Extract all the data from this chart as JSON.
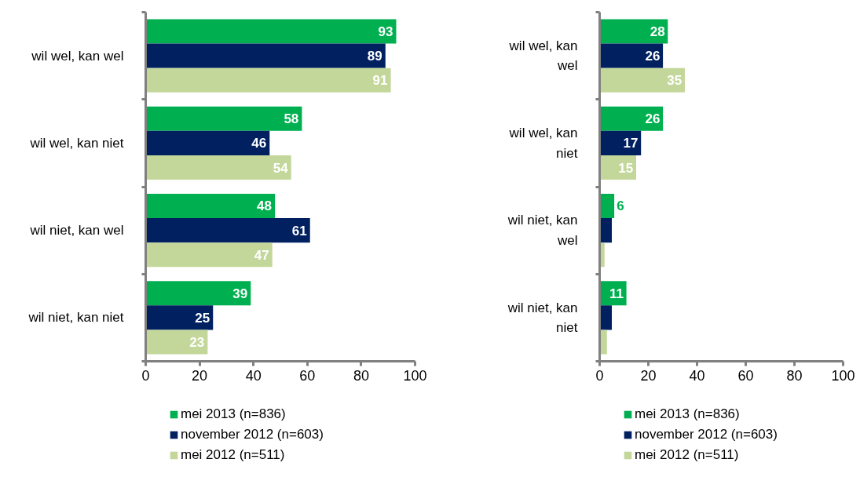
{
  "chart_data": [
    {
      "type": "bar",
      "orientation": "horizontal",
      "categories": [
        "wil wel, kan wel",
        "wil wel, kan niet",
        "wil niet, kan wel",
        "wil niet, kan niet"
      ],
      "series": [
        {
          "name": "mei 2013 (n=836)",
          "color": "#00b050",
          "values": [
            93,
            58,
            48,
            39
          ]
        },
        {
          "name": "november 2012 (n=603)",
          "color": "#002060",
          "values": [
            89,
            46,
            61,
            25
          ]
        },
        {
          "name": "mei 2012 (n=511)",
          "color": "#c4d79b",
          "values": [
            91,
            54,
            47,
            23
          ]
        }
      ],
      "xlim": [
        0,
        100
      ],
      "xticks": [
        0,
        20,
        40,
        60,
        80,
        100
      ],
      "data_labels": true,
      "legend": "bottom",
      "grid": false
    },
    {
      "type": "bar",
      "orientation": "horizontal",
      "categories": [
        "wil wel, kan wel",
        "wil wel, kan niet",
        "wil niet, kan wel",
        "wil niet, kan niet"
      ],
      "series": [
        {
          "name": "mei 2013 (n=836)",
          "color": "#00b050",
          "values": [
            28,
            26,
            6,
            11
          ],
          "value_labels": [
            "28",
            "26",
            "6",
            "11"
          ]
        },
        {
          "name": "november 2012 (n=603)",
          "color": "#002060",
          "values": [
            26,
            17,
            5,
            5
          ],
          "value_labels": [
            "26",
            "17",
            null,
            null
          ]
        },
        {
          "name": "mei 2012 (n=511)",
          "color": "#c4d79b",
          "values": [
            35,
            15,
            2,
            3
          ],
          "value_labels": [
            "35",
            "15",
            null,
            null
          ]
        }
      ],
      "xlim": [
        0,
        100
      ],
      "xticks": [
        0,
        20,
        40,
        60,
        80,
        100
      ],
      "legend": "bottom",
      "grid": false
    }
  ]
}
